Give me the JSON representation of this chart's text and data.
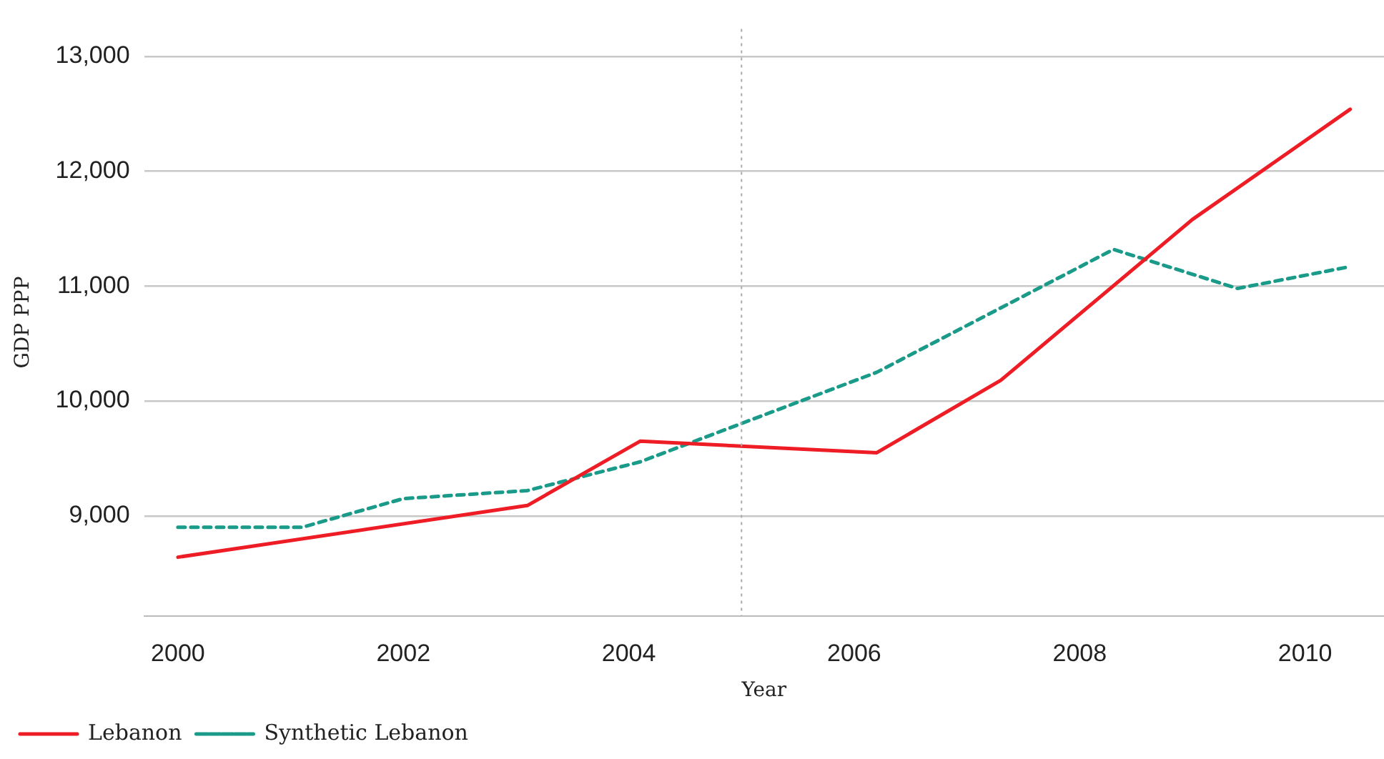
{
  "chart_data": {
    "type": "line",
    "xlabel": "Year",
    "ylabel": "GDP PPP",
    "xlim": [
      1999.7,
      2010.7
    ],
    "xticks": [
      2000,
      2002,
      2004,
      2006,
      2008,
      2010
    ],
    "ylim": [
      8130,
      13240
    ],
    "yticks": [
      {
        "value": 9000,
        "label": "9,000"
      },
      {
        "value": 10000,
        "label": "10,000"
      },
      {
        "value": 11000,
        "label": "11,000"
      },
      {
        "value": 12000,
        "label": "12,000"
      },
      {
        "value": 13000,
        "label": "13,000"
      }
    ],
    "grid": "y",
    "legend": "bottom left",
    "marker": "none",
    "ref_lines": [
      {
        "axis": "x",
        "value": 2005,
        "color": "#aaaaaa",
        "line_style": "dotted"
      }
    ],
    "series": [
      {
        "name": "Lebanon",
        "color": "#ee1c25",
        "line_style": "solid",
        "x": [
          2000,
          2003.1,
          2004.1,
          2006.2,
          2007.3,
          2009,
          2010.4
        ],
        "values": [
          8640,
          9090,
          9650,
          9550,
          10180,
          11580,
          12540
        ]
      },
      {
        "name": "Synthetic Lebanon",
        "color": "#1a9b8a",
        "line_style": "dashed",
        "x": [
          2000,
          2001.1,
          2002,
          2003.1,
          2004.1,
          2006.2,
          2008.3,
          2009.4,
          2010.4
        ],
        "values": [
          8900,
          8900,
          9150,
          9220,
          9470,
          10250,
          11320,
          10980,
          11170
        ]
      }
    ]
  }
}
